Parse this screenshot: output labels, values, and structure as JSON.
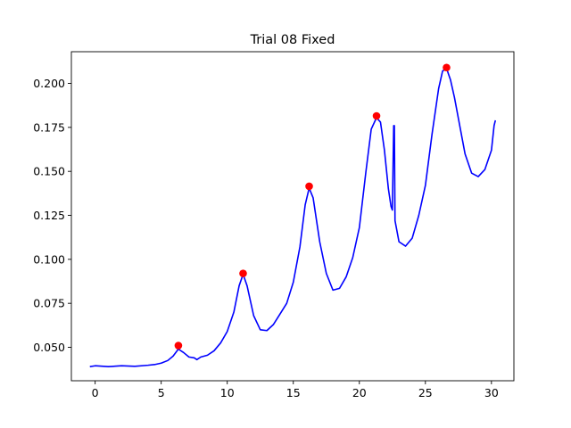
{
  "chart_data": {
    "type": "line",
    "title": "Trial 08 Fixed",
    "xlabel": "",
    "ylabel": "",
    "xlim": [
      -1.8,
      31.7
    ],
    "ylim": [
      0.031,
      0.218
    ],
    "x_ticks": [
      0,
      5,
      10,
      15,
      20,
      25,
      30
    ],
    "x_tick_labels": [
      "0",
      "5",
      "10",
      "15",
      "20",
      "25",
      "30"
    ],
    "y_ticks": [
      0.05,
      0.075,
      0.1,
      0.125,
      0.15,
      0.175,
      0.2
    ],
    "y_tick_labels": [
      "0.050",
      "0.075",
      "0.100",
      "0.125",
      "0.150",
      "0.175",
      "0.200"
    ],
    "grid": false,
    "legend": "none",
    "series": [
      {
        "color": "#0000ff",
        "x": [
          -0.4,
          0,
          1,
          2,
          3,
          4,
          4.5,
          5,
          5.5,
          5.9,
          6.3,
          6.7,
          7.1,
          7.5,
          7.7,
          8,
          8.5,
          9,
          9.5,
          10,
          10.5,
          10.9,
          11.2,
          11.5,
          12,
          12.5,
          13,
          13.5,
          14,
          14.5,
          15,
          15.5,
          15.9,
          16.2,
          16.5,
          17,
          17.5,
          18,
          18.5,
          19,
          19.5,
          20,
          20.5,
          20.9,
          21.3,
          21.6,
          21.9,
          22.2,
          22.4,
          22.5,
          22.6,
          22.65,
          22.7,
          23,
          23.5,
          24,
          24.5,
          25,
          25.5,
          26,
          26.3,
          26.6,
          26.9,
          27.2,
          27.5,
          28,
          28.5,
          29,
          29.5,
          30,
          30.2,
          30.3
        ],
        "y": [
          0.039,
          0.0395,
          0.039,
          0.0395,
          0.0392,
          0.0398,
          0.0402,
          0.041,
          0.0425,
          0.045,
          0.049,
          0.047,
          0.0445,
          0.044,
          0.043,
          0.0445,
          0.0455,
          0.048,
          0.0525,
          0.059,
          0.07,
          0.085,
          0.0915,
          0.085,
          0.068,
          0.06,
          0.0595,
          0.063,
          0.069,
          0.075,
          0.087,
          0.107,
          0.131,
          0.1405,
          0.135,
          0.11,
          0.092,
          0.0825,
          0.0835,
          0.09,
          0.101,
          0.118,
          0.15,
          0.174,
          0.1805,
          0.178,
          0.162,
          0.14,
          0.13,
          0.128,
          0.176,
          0.176,
          0.122,
          0.11,
          0.1075,
          0.112,
          0.125,
          0.142,
          0.171,
          0.197,
          0.207,
          0.2085,
          0.202,
          0.192,
          0.18,
          0.16,
          0.149,
          0.147,
          0.151,
          0.162,
          0.176,
          0.179
        ]
      }
    ],
    "markers": {
      "color": "#ff0000",
      "x": [
        6.3,
        11.2,
        16.2,
        21.3,
        26.6
      ],
      "y": [
        0.051,
        0.092,
        0.1415,
        0.1815,
        0.209
      ]
    }
  }
}
